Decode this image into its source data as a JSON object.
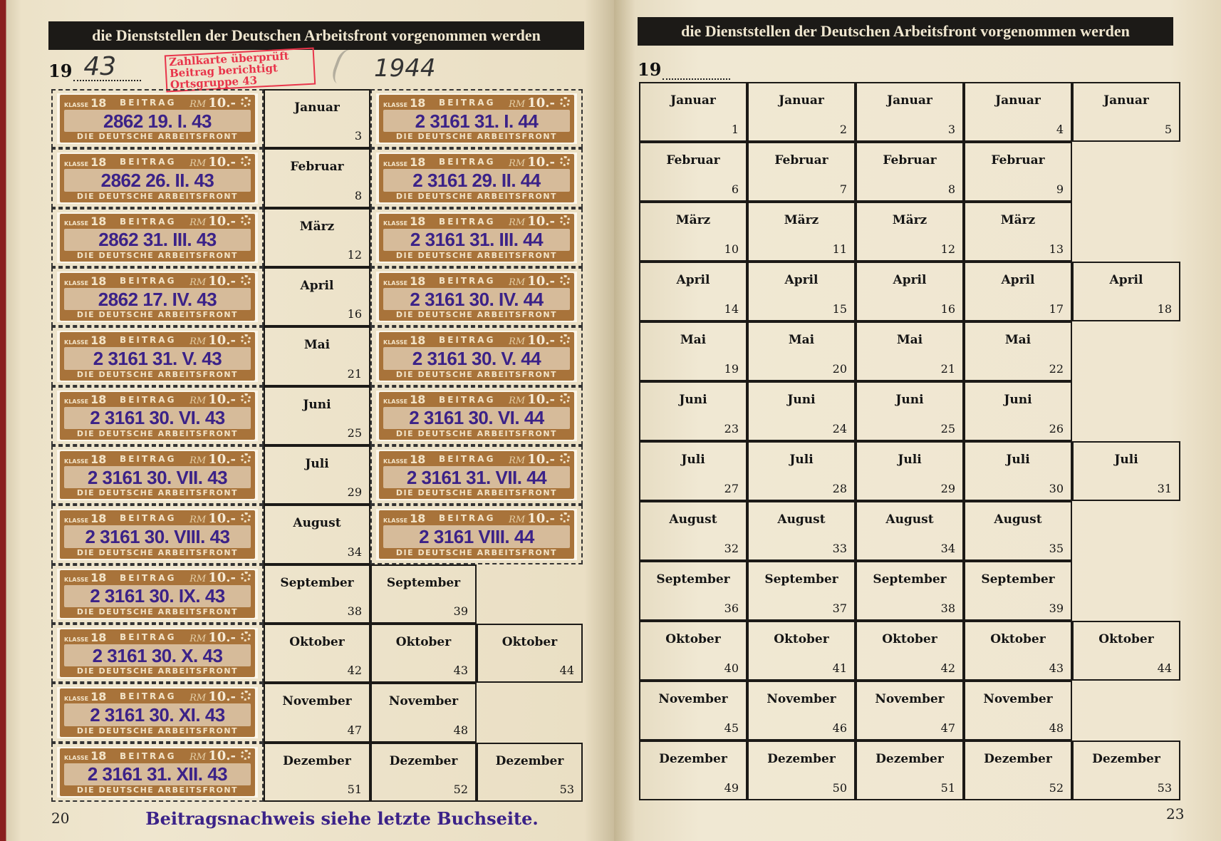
{
  "left_page": {
    "header": "die Dienststellen der Deutschen Arbeitsfront vorgenommen werden",
    "year_prefix": "19",
    "year_hand": "43",
    "year_hand_2": "1944",
    "page_number": "20",
    "stamp_text": {
      "top": "BEITRAG",
      "class_label": "KLASSE",
      "class": "18",
      "currency": "RM",
      "value": "10.-",
      "bottom": "DIE DEUTSCHE ARBEITSFRONT"
    },
    "red_stamp": [
      "Zahlkarte überprüft",
      "Beitrag berichtigt",
      "Ortsgruppe 43"
    ],
    "diagonal_stamp": "Beitragsnachweis siehe letzte Buchseite.",
    "rows": [
      {
        "month": "Januar",
        "num": "3",
        "cancel_43": "2862 19. I. 43",
        "cancel_44": "2 3161 31. I. 44"
      },
      {
        "month": "Februar",
        "num": "8",
        "cancel_43": "2862 26. II. 43",
        "cancel_44": "2 3161 29. II. 44"
      },
      {
        "month": "März",
        "num": "12",
        "cancel_43": "2862 31. III. 43",
        "cancel_44": "2 3161 31. III. 44"
      },
      {
        "month": "April",
        "num": "16",
        "cancel_43": "2862 17. IV. 43",
        "cancel_44": "2 3161 30. IV. 44"
      },
      {
        "month": "Mai",
        "num": "21",
        "cancel_43": "2 3161 31. V. 43",
        "cancel_44": "2 3161 30. V. 44"
      },
      {
        "month": "Juni",
        "num": "25",
        "cancel_43": "2 3161 30. VI. 43",
        "cancel_44": "2 3161 30. VI. 44"
      },
      {
        "month": "Juli",
        "num": "29",
        "cancel_43": "2 3161 30. VII. 43",
        "cancel_44": "2 3161 31. VII. 44"
      },
      {
        "month": "August",
        "num": "34",
        "cancel_43": "2 3161 30. VIII. 43",
        "cancel_44": "2 3161 VIII. 44"
      },
      {
        "month": "September",
        "num": "38",
        "cancel_43": "2 3161 30. IX. 43",
        "extra": [
          {
            "month": "September",
            "num": "39"
          }
        ]
      },
      {
        "month": "Oktober",
        "num": "42",
        "cancel_43": "2 3161 30. X. 43",
        "extra": [
          {
            "month": "Oktober",
            "num": "43"
          },
          {
            "month": "Oktober",
            "num": "44"
          }
        ]
      },
      {
        "month": "November",
        "num": "47",
        "cancel_43": "2 3161 30. XI. 43",
        "extra": [
          {
            "month": "November",
            "num": "48"
          }
        ]
      },
      {
        "month": "Dezember",
        "num": "51",
        "cancel_43": "2 3161 31. XII. 43",
        "extra": [
          {
            "month": "Dezember",
            "num": "52"
          },
          {
            "month": "Dezember",
            "num": "53"
          }
        ]
      }
    ]
  },
  "right_page": {
    "header": "die Dienststellen der Deutschen Arbeitsfront vorgenommen werden",
    "year_prefix": "19",
    "page_number": "23",
    "rows": [
      {
        "month": "Januar",
        "nums": [
          "1",
          "2",
          "3",
          "4",
          "5"
        ]
      },
      {
        "month": "Februar",
        "nums": [
          "6",
          "7",
          "8",
          "9"
        ]
      },
      {
        "month": "März",
        "nums": [
          "10",
          "11",
          "12",
          "13"
        ]
      },
      {
        "month": "April",
        "nums": [
          "14",
          "15",
          "16",
          "17",
          "18"
        ]
      },
      {
        "month": "Mai",
        "nums": [
          "19",
          "20",
          "21",
          "22"
        ]
      },
      {
        "month": "Juni",
        "nums": [
          "23",
          "24",
          "25",
          "26"
        ]
      },
      {
        "month": "Juli",
        "nums": [
          "27",
          "28",
          "29",
          "30",
          "31"
        ]
      },
      {
        "month": "August",
        "nums": [
          "32",
          "33",
          "34",
          "35"
        ]
      },
      {
        "month": "September",
        "nums": [
          "36",
          "37",
          "38",
          "39"
        ]
      },
      {
        "month": "Oktober",
        "nums": [
          "40",
          "41",
          "42",
          "43",
          "44"
        ]
      },
      {
        "month": "November",
        "nums": [
          "45",
          "46",
          "47",
          "48"
        ]
      },
      {
        "month": "Dezember",
        "nums": [
          "49",
          "50",
          "51",
          "52",
          "53"
        ]
      }
    ]
  },
  "colors": {
    "paper": "#efe6cf",
    "stamp": "#a8733a",
    "cancel_ink": "#3b2288",
    "red_ink": "#e8344a",
    "header_bar": "#1c1a17"
  }
}
